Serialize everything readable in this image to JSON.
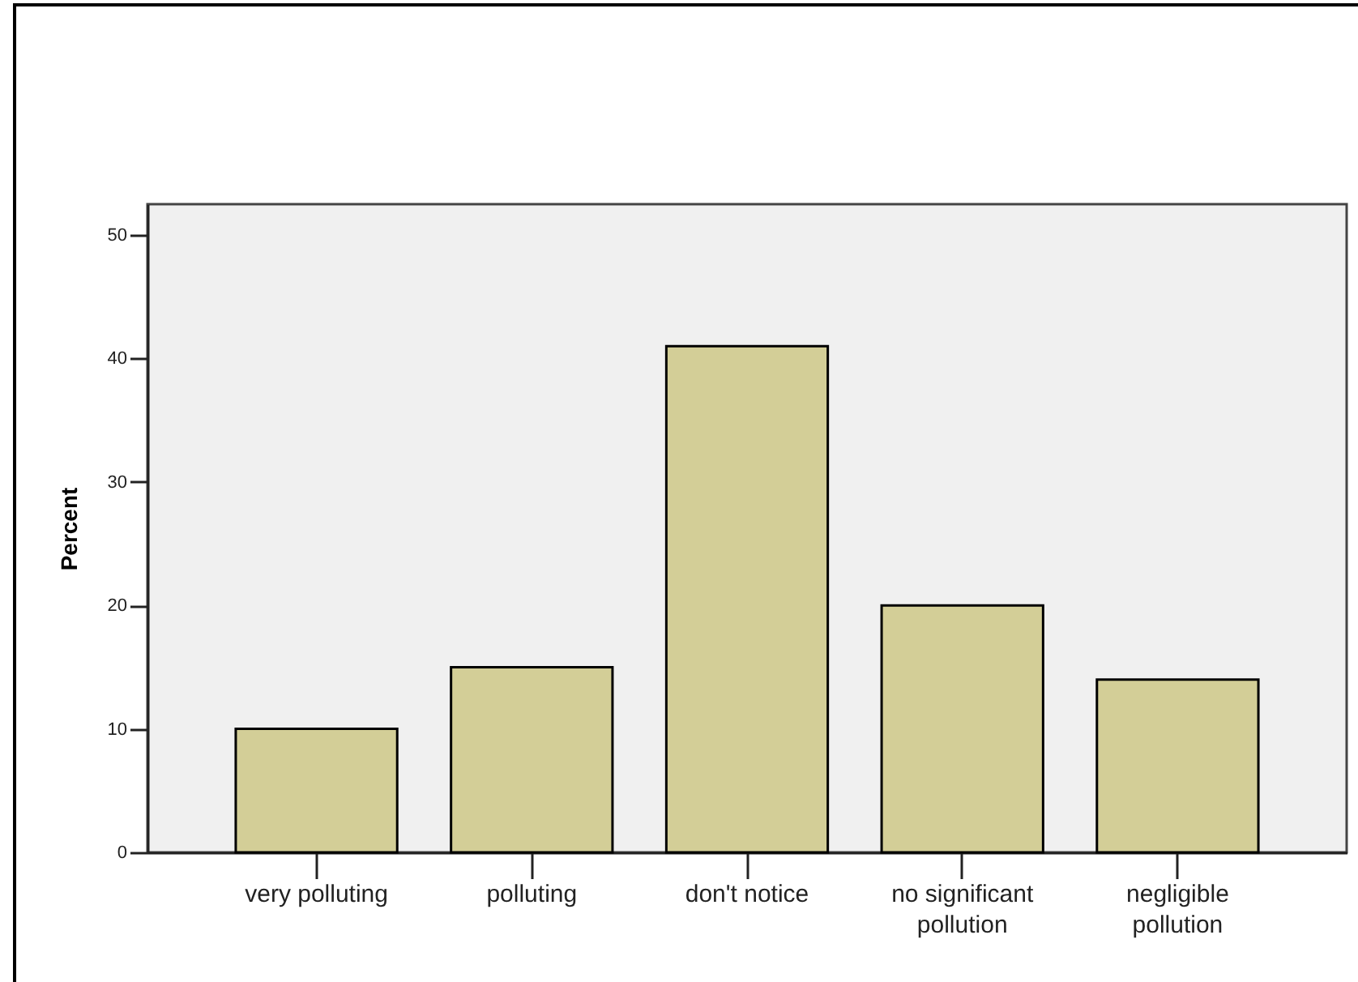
{
  "chart_data": {
    "type": "bar",
    "ylabel": "Percent",
    "categories": [
      "very polluting",
      "polluting",
      "don't notice",
      "no significant pollution",
      "negligible pollution"
    ],
    "values": [
      10,
      15,
      41,
      20,
      14
    ],
    "color": "#d3ce97",
    "ylim": [
      0,
      52.5
    ],
    "yticks": [
      0,
      10,
      20,
      30,
      40,
      50
    ]
  }
}
